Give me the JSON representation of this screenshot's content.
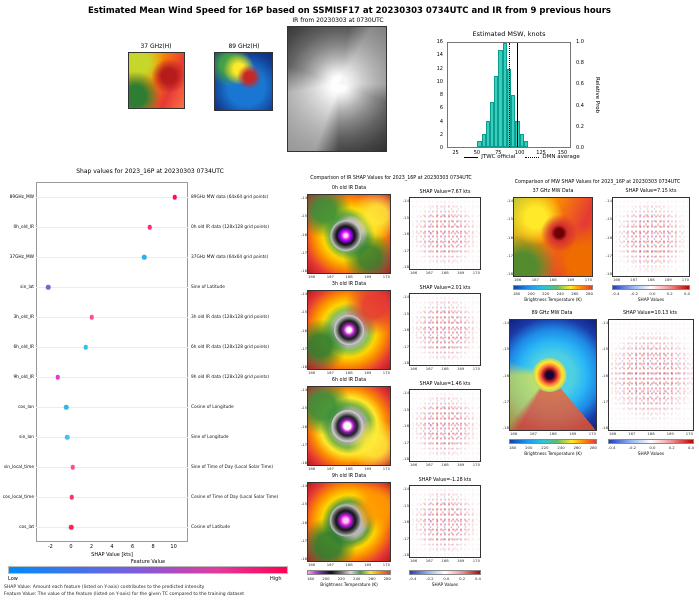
{
  "header": {
    "title": "Estimated Mean Wind Speed for 16P based on SSMISF17 at 20230303 0734UTC and IR from 9 previous hours"
  },
  "top": {
    "mw37_label": "37 GHz(H)",
    "mw89_label": "89 GHz(H)",
    "ir_label": "IR from 20230303 at 0730UTC"
  },
  "chart_data": [
    {
      "id": "msw-histogram",
      "type": "bar",
      "title": "Estimated MSW, knots",
      "x": [
        50,
        55,
        60,
        65,
        70,
        75,
        80,
        85,
        90,
        95,
        100,
        105
      ],
      "values": [
        1,
        2,
        4,
        7,
        11,
        15,
        16,
        12,
        8,
        4,
        2,
        1
      ],
      "bin_width": 5,
      "xlim": [
        15,
        160
      ],
      "xticks": [
        25,
        50,
        75,
        100,
        125,
        150
      ],
      "ylim": [
        0,
        16
      ],
      "yticks_left": [
        0,
        2,
        4,
        6,
        8,
        10,
        12,
        14,
        16
      ],
      "ylabel_right": "Relative Prob",
      "yticks_right": [
        "0.0",
        "0.2",
        "0.4",
        "0.6",
        "0.8",
        "1.0"
      ],
      "bar_color": "#35d0c0",
      "lines": {
        "jtwc_official_x": 97,
        "dmn_average_x": 88
      },
      "legend": [
        {
          "label": "JTWC official",
          "style": "solid"
        },
        {
          "label": "DMN average",
          "style": "dotted"
        }
      ]
    },
    {
      "id": "shap-summary",
      "type": "scatter",
      "title": "Shap values for 2023_16P at 20230303 0734UTC",
      "xlabel": "SHAP Value [kts]",
      "xlim": [
        -3.4,
        11.4
      ],
      "xticks": [
        -2,
        0,
        2,
        4,
        6,
        8,
        10
      ],
      "grid": false,
      "colorbar": {
        "label": "Feature Value",
        "low": "Low",
        "high": "High",
        "low_color": "#008bfb",
        "high_color": "#ff0051"
      },
      "features": [
        {
          "name": "89GHz_MW",
          "desc": "89GHz MW data (64x64 grid points)",
          "shap": 10.13,
          "color": "#ff0d57"
        },
        {
          "name": "0h_old_IR",
          "desc": "0h old IR data (128x128 grid points)",
          "shap": 7.67,
          "color": "#ff2d7e"
        },
        {
          "name": "37GHz_MW",
          "desc": "37GHz MW data (64x64 grid points)",
          "shap": 7.15,
          "color": "#27b3e8"
        },
        {
          "name": "sin_lat",
          "desc": "Sine of Latitude",
          "shap": -2.2,
          "color": "#8a5cd6"
        },
        {
          "name": "3h_old_IR",
          "desc": "3h old IR data (128x128 grid points)",
          "shap": 2.01,
          "color": "#ff4d9a"
        },
        {
          "name": "6h_old_IR",
          "desc": "6h old IR data (128x128 grid points)",
          "shap": 1.46,
          "color": "#2bc0f0"
        },
        {
          "name": "9h_old_IR",
          "desc": "9h old IR data (128x128 grid points)",
          "shap": -1.28,
          "color": "#e23bd0"
        },
        {
          "name": "cos_lon",
          "desc": "Cosine of Longitude",
          "shap": -0.45,
          "color": "#38b6e0"
        },
        {
          "name": "sin_lon",
          "desc": "Sine of Longitude",
          "shap": -0.35,
          "color": "#45c4f0"
        },
        {
          "name": "sin_local_time",
          "desc": "Sine of Time of Day (Local Solar Time)",
          "shap": 0.18,
          "color": "#ff4d9a"
        },
        {
          "name": "cos_local_time",
          "desc": "Cosine of Time of Day (Local Solar Time)",
          "shap": 0.08,
          "color": "#f03a6a"
        },
        {
          "name": "cos_lat",
          "desc": "Cosine of Latitude",
          "shap": 0.05,
          "color": "#ff2450"
        }
      ],
      "footnotes": [
        "SHAP Value: Amount each feature (listed on Y-axis) contributes to the predicted intensity",
        "Feature Value: The value of the feature (listed on Y-axis) for the given TC compared to the training dataset"
      ]
    }
  ],
  "ir_panel": {
    "title": "Comparison of IR SHAP Values for 2023_16P at 20230303 0734UTC",
    "rows": [
      {
        "data_title": "0h old IR Data",
        "shap_title": "SHAP Value=7.67 kts"
      },
      {
        "data_title": "3h old IR Data",
        "shap_title": "SHAP Value=2.01 kts"
      },
      {
        "data_title": "6h old IR Data",
        "shap_title": "SHAP Value=1.46 kts"
      },
      {
        "data_title": "9h old IR Data",
        "shap_title": "SHAP Value=-1.28 kts"
      }
    ],
    "bt_colorbar_label": "Brightness Temperature (K)",
    "shap_colorbar_label": "SHAP Values",
    "bt_ticks": [
      "180",
      "200",
      "220",
      "240",
      "260",
      "280"
    ],
    "shap_ticks": [
      "-0.4",
      "-0.2",
      "0.0",
      "0.2",
      "0.4"
    ]
  },
  "mw_panel": {
    "title": "Comparison of MW SHAP Values for 2023_16P at 20230303 0734UTC",
    "rows": [
      {
        "data_title": "37 GHz MW Data",
        "shap_title": "SHAP Value=7.15 kts"
      },
      {
        "data_title": "89 GHz MW Data",
        "shap_title": "SHAP Value=10.13 kts"
      }
    ],
    "bt_colorbar_label": "Brightness Temperature (K)",
    "shap_colorbar_label": "SHAP Values",
    "bt_ticks": [
      "180",
      "200",
      "220",
      "240",
      "260",
      "280"
    ],
    "shap_ticks": [
      "-0.4",
      "-0.2",
      "0.0",
      "0.2",
      "0.4"
    ]
  },
  "maps": {
    "xticks": [
      "166",
      "167",
      "168",
      "169",
      "170"
    ],
    "yticks": [
      "-14",
      "-15",
      "-16",
      "-17",
      "-18"
    ]
  }
}
